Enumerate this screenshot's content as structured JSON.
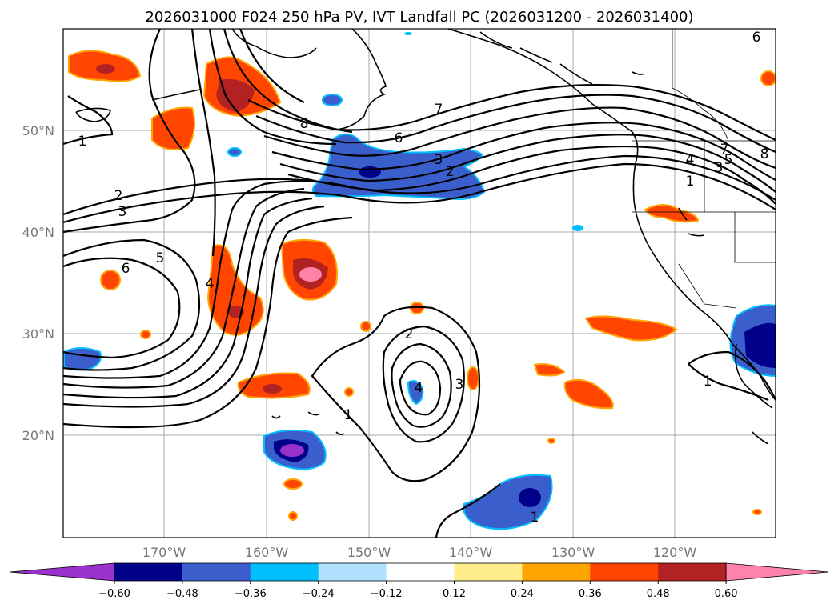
{
  "title": "2026031000 F024 250 hPa PV, IVT Landfall PC (2026031200 - 2026031400)",
  "lat_labels": [
    "50°N",
    "40°N",
    "30°N",
    "20°N"
  ],
  "lon_labels": [
    "170°W",
    "160°W",
    "150°W",
    "140°W",
    "130°W",
    "120°W"
  ],
  "contour_labels": [
    "1",
    "2",
    "3",
    "5",
    "6",
    "4",
    "8",
    "7",
    "6",
    "3",
    "2",
    "2",
    "4",
    "3",
    "1",
    "1",
    "1",
    "7",
    "4",
    "3",
    "5",
    "1",
    "8",
    "6"
  ],
  "colorbar": {
    "colors": [
      "#9932cc",
      "#00008b",
      "#3a5fcd",
      "#00bfff",
      "#b0e2ff",
      "#ffffff",
      "#ffec8b",
      "#ffa500",
      "#ff4500",
      "#b22222",
      "#ff82ab"
    ],
    "tick_labels": [
      "−0.60",
      "−0.48",
      "−0.36",
      "−0.24",
      "−0.12",
      "0.12",
      "0.24",
      "0.36",
      "0.48",
      "0.60"
    ],
    "levels": [
      -0.6,
      -0.48,
      -0.36,
      -0.24,
      -0.12,
      0.12,
      0.24,
      0.36,
      0.48,
      0.6
    ]
  }
}
